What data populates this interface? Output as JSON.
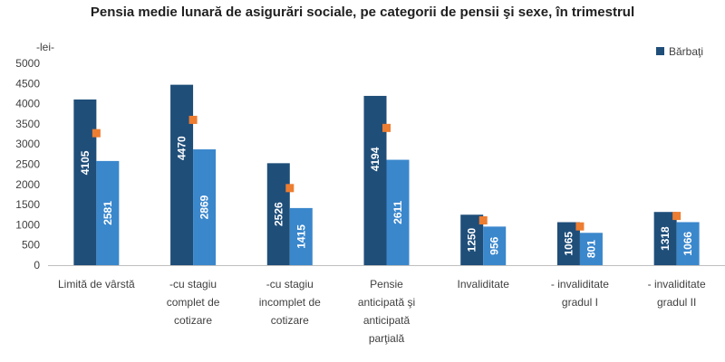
{
  "chart_data": {
    "type": "bar",
    "title": "Pensia medie lunară de asigurări sociale, pe categorii de pensii şi sexe, în trimestrul",
    "unit_label": "-lei-",
    "ylim": [
      0,
      5000
    ],
    "yticks": [
      0,
      500,
      1000,
      1500,
      2000,
      2500,
      3000,
      3500,
      4000,
      4500,
      5000
    ],
    "grid": false,
    "legend": "top-right",
    "categories": [
      [
        "Limită de vârstă"
      ],
      [
        "-cu stagiu",
        "complet de",
        "cotizare"
      ],
      [
        "-cu stagiu",
        "incomplet de",
        "cotizare"
      ],
      [
        "Pensie",
        "anticipată şi",
        "anticipată",
        "parţială"
      ],
      [
        "Invaliditate"
      ],
      [
        "- invaliditate",
        "gradul I"
      ],
      [
        "- invaliditate",
        "gradul II"
      ]
    ],
    "series": [
      {
        "name": "Bărbaţi",
        "type": "bar",
        "values": [
          4105,
          4470,
          2526,
          4194,
          1250,
          1065,
          1318
        ]
      },
      {
        "type": "bar",
        "values": [
          2581,
          2869,
          1415,
          2611,
          956,
          801,
          1066
        ]
      },
      {
        "type": "marker",
        "values": [
          3270,
          3600,
          1910,
          3400,
          1110,
          960,
          1220
        ]
      }
    ],
    "colors": {
      "men": "#1f4e79",
      "women": "#3a87cc",
      "marker": "#ed7d31",
      "axis": "#bfbfbf"
    }
  }
}
